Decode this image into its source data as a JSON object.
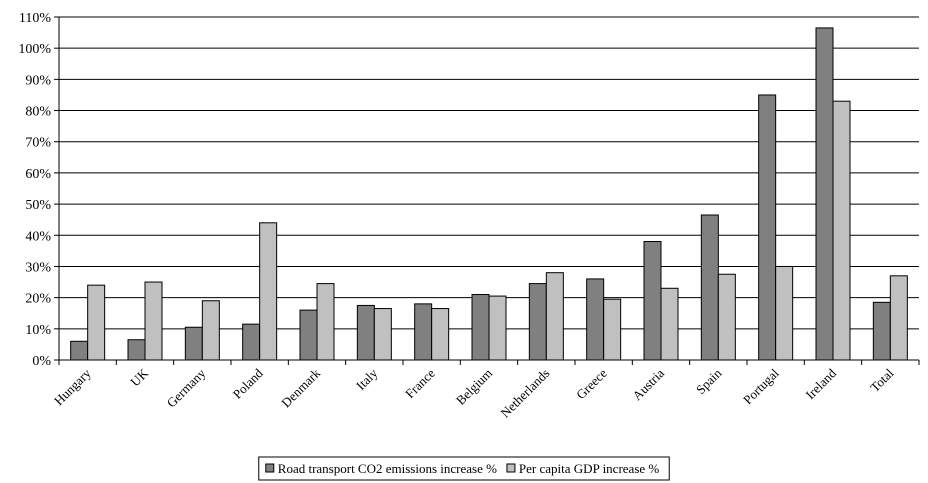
{
  "chart_data": {
    "type": "bar",
    "title": "",
    "xlabel": "",
    "ylabel": "",
    "ylim": [
      0,
      110
    ],
    "y_ticks": [
      "0%",
      "10%",
      "20%",
      "30%",
      "40%",
      "50%",
      "60%",
      "70%",
      "80%",
      "90%",
      "100%",
      "110%"
    ],
    "grid": true,
    "legend_position": "bottom",
    "categories": [
      "Hungary",
      "UK",
      "Germany",
      "Poland",
      "Denmark",
      "Italy",
      "France",
      "Belgium",
      "Netherlands",
      "Greece",
      "Austria",
      "Spain",
      "Portugal",
      "Ireland",
      "Total"
    ],
    "series": [
      {
        "name": "Road transport CO2 emissions increase %",
        "color": "#808080",
        "values": [
          6,
          6.5,
          10.5,
          11.5,
          16,
          17.5,
          18,
          21,
          24.5,
          26,
          38,
          46.5,
          85,
          106.5,
          18.5
        ]
      },
      {
        "name": "Per capita GDP increase %",
        "color": "#c0c0c0",
        "values": [
          24,
          25,
          19,
          44,
          24.5,
          16.5,
          16.5,
          20.5,
          28,
          19.5,
          23,
          27.5,
          30,
          83,
          27
        ]
      }
    ]
  }
}
